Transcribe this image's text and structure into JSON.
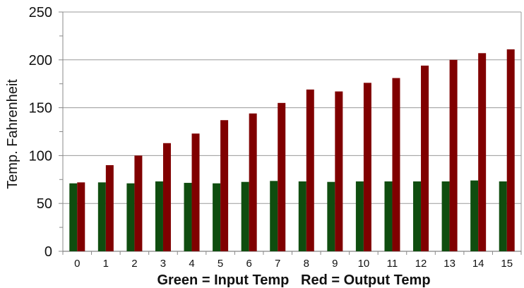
{
  "chart_data": {
    "type": "bar",
    "categories": [
      "0",
      "1",
      "2",
      "3",
      "4",
      "5",
      "6",
      "7",
      "8",
      "9",
      "10",
      "11",
      "12",
      "13",
      "14",
      "15"
    ],
    "series": [
      {
        "color": "#0f4d0f",
        "values": [
          71,
          72,
          71,
          73,
          71.5,
          71,
          72.5,
          73.5,
          73,
          72.5,
          73,
          73,
          73,
          73,
          74,
          73
        ]
      },
      {
        "color": "#800000",
        "values": [
          72,
          90,
          100,
          113,
          123,
          137,
          144,
          155,
          169,
          167,
          176,
          181,
          194,
          200,
          207,
          211
        ]
      }
    ],
    "ylim": [
      0,
      250
    ],
    "yticks": [
      "0",
      "50",
      "100",
      "150",
      "200",
      "250"
    ],
    "ylabel": "Temp. Fahrenheit",
    "xlabel": "Green = Input Temp   Red = Output Temp",
    "grid": "horizontal"
  }
}
